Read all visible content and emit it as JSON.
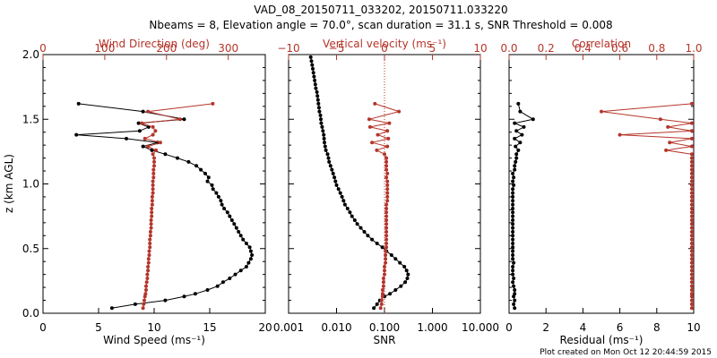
{
  "title_line1": "VAD_08_20150711_033202, 20150711.033220",
  "title_line2": "Nbeams = 8, Elevation angle = 70.0°, scan duration = 31.1 s, SNR Threshold = 0.008",
  "footer": "Plot created on Mon Oct 12 20:44:59 2015",
  "colors": {
    "black_series": "#000000",
    "red_series": "#b5352a",
    "zero_line": "#b5352a"
  },
  "chart_data": [
    {
      "type": "line",
      "panel": "wind",
      "ylabel": "z (km AGL)",
      "ylim": [
        0,
        2.0
      ],
      "yticks": [
        "0.0",
        "0.5",
        "1.0",
        "1.5",
        "2.0"
      ],
      "xlabel": "Wind Speed (ms⁻¹)",
      "xlim": [
        0,
        20
      ],
      "xticks": [
        "0",
        "5",
        "10",
        "15",
        "20"
      ],
      "top_xlabel": "Wind Direction (deg)",
      "top_xlim": [
        0,
        360
      ],
      "top_xticks": [
        "0",
        "100",
        "200",
        "300"
      ],
      "series": [
        {
          "axis": "bottom",
          "z": [
            0.04,
            0.07,
            0.1,
            0.13,
            0.15,
            0.18,
            0.21,
            0.24,
            0.27,
            0.3,
            0.33,
            0.36,
            0.39,
            0.42,
            0.45,
            0.48,
            0.51,
            0.54,
            0.57,
            0.6,
            0.63,
            0.66,
            0.69,
            0.72,
            0.75,
            0.78,
            0.81,
            0.84,
            0.87,
            0.9,
            0.93,
            0.96,
            0.99,
            1.02,
            1.05,
            1.08,
            1.11,
            1.14,
            1.17,
            1.2,
            1.23,
            1.26,
            1.29,
            1.32,
            1.35,
            1.38,
            1.41,
            1.44,
            1.47,
            1.5,
            1.56,
            1.62
          ],
          "values": [
            6.2,
            8.3,
            11.0,
            12.7,
            13.7,
            14.8,
            15.7,
            16.2,
            16.8,
            17.3,
            17.8,
            18.3,
            18.5,
            18.7,
            18.8,
            18.7,
            18.6,
            18.3,
            18.0,
            17.8,
            17.6,
            17.4,
            17.2,
            17.0,
            16.8,
            16.6,
            16.3,
            16.1,
            16.0,
            15.8,
            15.6,
            15.3,
            15.2,
            14.8,
            14.9,
            14.6,
            14.2,
            13.8,
            13.1,
            12.1,
            11.0,
            9.8,
            9.0,
            10.3,
            7.5,
            3.0,
            8.7,
            9.5,
            8.6,
            12.7,
            9.0,
            3.2
          ]
        },
        {
          "axis": "top",
          "z": [
            0.04,
            0.07,
            0.1,
            0.13,
            0.15,
            0.18,
            0.21,
            0.24,
            0.27,
            0.3,
            0.33,
            0.36,
            0.39,
            0.42,
            0.45,
            0.48,
            0.51,
            0.54,
            0.57,
            0.6,
            0.63,
            0.66,
            0.69,
            0.72,
            0.75,
            0.78,
            0.81,
            0.84,
            0.87,
            0.9,
            0.93,
            0.96,
            0.99,
            1.02,
            1.05,
            1.08,
            1.11,
            1.14,
            1.17,
            1.2,
            1.23,
            1.26,
            1.29,
            1.32,
            1.35,
            1.38,
            1.41,
            1.44,
            1.47,
            1.5,
            1.56,
            1.62
          ],
          "values": [
            162,
            163,
            164,
            165,
            166,
            167,
            167,
            168,
            169,
            169,
            170,
            170,
            171,
            171,
            172,
            172,
            173,
            173,
            173,
            174,
            174,
            175,
            175,
            175,
            176,
            176,
            176,
            177,
            177,
            177,
            178,
            178,
            178,
            178,
            179,
            179,
            179,
            180,
            180,
            180,
            178,
            183,
            170,
            190,
            165,
            178,
            182,
            178,
            160,
            222,
            170,
            275
          ]
        }
      ]
    },
    {
      "type": "line",
      "panel": "snr",
      "xlabel": "SNR",
      "xscale": "log",
      "xlim": [
        0.001,
        10
      ],
      "xticks": [
        "0.001",
        "0.010",
        "0.100",
        "1.000",
        "10.000"
      ],
      "top_xlabel": "Vertical velocity (ms⁻¹)",
      "top_xlim": [
        -10,
        10
      ],
      "top_xticks": [
        "−10",
        "−5",
        "0",
        "5",
        "10"
      ],
      "ylim": [
        0,
        2.0
      ],
      "series": [
        {
          "axis": "bottom",
          "z": [
            0.04,
            0.07,
            0.1,
            0.13,
            0.15,
            0.18,
            0.21,
            0.24,
            0.27,
            0.3,
            0.33,
            0.36,
            0.39,
            0.42,
            0.45,
            0.48,
            0.51,
            0.54,
            0.57,
            0.6,
            0.63,
            0.66,
            0.69,
            0.72,
            0.75,
            0.78,
            0.81,
            0.84,
            0.87,
            0.9,
            0.93,
            0.96,
            0.99,
            1.02,
            1.05,
            1.08,
            1.11,
            1.14,
            1.17,
            1.2,
            1.23,
            1.26,
            1.29,
            1.32,
            1.35,
            1.38,
            1.41,
            1.44,
            1.47,
            1.5,
            1.53,
            1.56,
            1.59,
            1.62,
            1.65,
            1.68,
            1.71,
            1.74,
            1.77,
            1.8,
            1.83,
            1.86,
            1.89,
            1.92,
            1.95,
            1.98
          ],
          "values": [
            0.06,
            0.07,
            0.08,
            0.1,
            0.13,
            0.17,
            0.22,
            0.27,
            0.3,
            0.31,
            0.29,
            0.26,
            0.21,
            0.17,
            0.14,
            0.11,
            0.09,
            0.07,
            0.055,
            0.045,
            0.038,
            0.032,
            0.027,
            0.024,
            0.021,
            0.019,
            0.017,
            0.015,
            0.014,
            0.013,
            0.012,
            0.011,
            0.01,
            0.0095,
            0.009,
            0.0085,
            0.008,
            0.0075,
            0.007,
            0.0068,
            0.0065,
            0.006,
            0.0058,
            0.0056,
            0.0055,
            0.0054,
            0.0052,
            0.005,
            0.0048,
            0.0047,
            0.0046,
            0.0044,
            0.0043,
            0.0042,
            0.0041,
            0.004,
            0.0039,
            0.0037,
            0.0036,
            0.0035,
            0.0034,
            0.0033,
            0.0032,
            0.0031,
            0.003,
            0.0029
          ]
        },
        {
          "axis": "top",
          "z": [
            0.04,
            0.07,
            0.1,
            0.13,
            0.15,
            0.18,
            0.21,
            0.24,
            0.27,
            0.3,
            0.33,
            0.36,
            0.39,
            0.42,
            0.45,
            0.48,
            0.51,
            0.54,
            0.57,
            0.6,
            0.63,
            0.66,
            0.69,
            0.72,
            0.75,
            0.78,
            0.81,
            0.84,
            0.87,
            0.9,
            0.93,
            0.96,
            0.99,
            1.02,
            1.05,
            1.08,
            1.11,
            1.14,
            1.17,
            1.2,
            1.23,
            1.26,
            1.29,
            1.32,
            1.35,
            1.38,
            1.41,
            1.44,
            1.47,
            1.5,
            1.56,
            1.62
          ],
          "values": [
            -0.4,
            -0.3,
            -0.3,
            -0.2,
            -0.2,
            -0.2,
            -0.1,
            -0.1,
            -0.1,
            0.0,
            0.0,
            0.0,
            0.1,
            0.1,
            0.1,
            0.1,
            0.2,
            0.2,
            0.2,
            0.2,
            0.2,
            0.2,
            0.2,
            0.2,
            0.2,
            0.2,
            0.2,
            0.2,
            0.3,
            0.3,
            0.3,
            0.3,
            0.3,
            0.3,
            0.2,
            0.3,
            0.2,
            0.2,
            0.2,
            0.2,
            0.0,
            -0.8,
            0.3,
            -1.3,
            0.4,
            -0.7,
            0.3,
            -1.5,
            0.5,
            -1.6,
            1.5,
            -1.0
          ]
        }
      ],
      "zero_line_top_x": 0
    },
    {
      "type": "line",
      "panel": "residual",
      "xlabel": "Residual (ms⁻¹)",
      "xlim": [
        0,
        10
      ],
      "xticks": [
        "0",
        "2",
        "4",
        "6",
        "8",
        "10"
      ],
      "top_xlabel": "Correlation",
      "top_xlim": [
        0,
        1.0
      ],
      "top_xticks": [
        "0.0",
        "0.2",
        "0.4",
        "0.6",
        "0.8",
        "1.0"
      ],
      "ylim": [
        0,
        2.0
      ],
      "series": [
        {
          "axis": "bottom",
          "z": [
            0.04,
            0.07,
            0.1,
            0.13,
            0.15,
            0.18,
            0.21,
            0.24,
            0.27,
            0.3,
            0.33,
            0.36,
            0.39,
            0.42,
            0.45,
            0.48,
            0.51,
            0.54,
            0.57,
            0.6,
            0.63,
            0.66,
            0.69,
            0.72,
            0.75,
            0.78,
            0.81,
            0.84,
            0.87,
            0.9,
            0.93,
            0.96,
            0.99,
            1.02,
            1.05,
            1.08,
            1.11,
            1.14,
            1.17,
            1.2,
            1.23,
            1.26,
            1.29,
            1.32,
            1.35,
            1.38,
            1.41,
            1.44,
            1.47,
            1.5,
            1.56,
            1.62
          ],
          "values": [
            0.3,
            0.25,
            0.3,
            0.25,
            0.3,
            0.3,
            0.25,
            0.2,
            0.25,
            0.2,
            0.2,
            0.2,
            0.25,
            0.2,
            0.2,
            0.2,
            0.2,
            0.2,
            0.2,
            0.2,
            0.2,
            0.2,
            0.2,
            0.2,
            0.2,
            0.2,
            0.2,
            0.2,
            0.2,
            0.2,
            0.2,
            0.2,
            0.25,
            0.2,
            0.25,
            0.2,
            0.3,
            0.3,
            0.35,
            0.4,
            0.4,
            0.5,
            0.35,
            0.6,
            0.3,
            0.7,
            0.4,
            0.8,
            0.3,
            1.3,
            0.6,
            0.5
          ]
        },
        {
          "axis": "top",
          "z": [
            0.04,
            0.07,
            0.1,
            0.13,
            0.15,
            0.18,
            0.21,
            0.24,
            0.27,
            0.3,
            0.33,
            0.36,
            0.39,
            0.42,
            0.45,
            0.48,
            0.51,
            0.54,
            0.57,
            0.6,
            0.63,
            0.66,
            0.69,
            0.72,
            0.75,
            0.78,
            0.81,
            0.84,
            0.87,
            0.9,
            0.93,
            0.96,
            0.99,
            1.02,
            1.05,
            1.08,
            1.11,
            1.14,
            1.17,
            1.2,
            1.23,
            1.26,
            1.29,
            1.32,
            1.35,
            1.38,
            1.41,
            1.44,
            1.47,
            1.5,
            1.56,
            1.62
          ],
          "values": [
            0.99,
            0.99,
            0.99,
            0.99,
            0.99,
            0.99,
            0.99,
            0.99,
            0.99,
            0.99,
            0.99,
            0.99,
            0.99,
            0.99,
            0.99,
            0.99,
            0.99,
            0.99,
            0.99,
            0.99,
            0.99,
            0.99,
            0.99,
            0.99,
            0.99,
            0.99,
            0.99,
            0.99,
            0.99,
            0.99,
            0.99,
            0.99,
            0.99,
            0.99,
            0.99,
            0.99,
            0.99,
            0.99,
            0.99,
            0.99,
            0.99,
            0.85,
            0.99,
            0.87,
            0.99,
            0.6,
            0.99,
            0.86,
            0.99,
            0.82,
            0.5,
            0.99
          ]
        }
      ]
    }
  ]
}
